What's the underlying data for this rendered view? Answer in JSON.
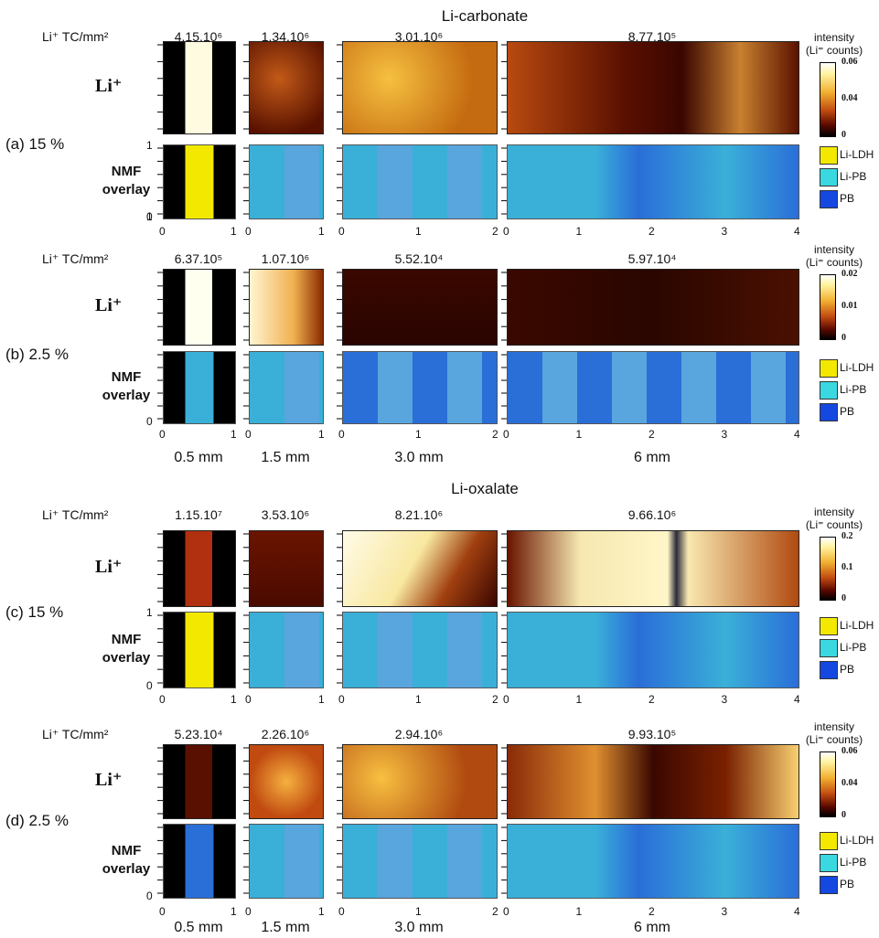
{
  "sections": [
    {
      "title": "Li-carbonate",
      "rows": [
        {
          "label": "(a) 15 %",
          "tc_label": "Li⁺ TC/mm²",
          "tc_values": [
            "4.15.10⁶",
            "1.34.10⁶",
            "3.01.10⁶",
            "8.77.10⁵"
          ],
          "li_label": "Li⁺",
          "nmf_label": [
            "NMF",
            "overlay"
          ],
          "colorbar": {
            "title": [
              "intensity",
              "(Li⁼ counts)"
            ],
            "ticks": [
              "0.06",
              "0.04",
              "0"
            ]
          },
          "legend": [
            "Li-LDH",
            "Li-PB",
            "PB"
          ],
          "y_ticks": [
            "1",
            "1",
            "0"
          ]
        },
        {
          "label": "(b) 2.5 %",
          "tc_label": "Li⁺ TC/mm²",
          "tc_values": [
            "6.37.10⁵",
            "1.07.10⁶",
            "5.52.10⁴",
            "5.97.10⁴"
          ],
          "li_label": "Li⁺",
          "nmf_label": [
            "NMF",
            "overlay"
          ],
          "colorbar": {
            "title": [
              "intensity",
              "(Li⁼ counts)"
            ],
            "ticks": [
              "0.02",
              "0.01",
              "0"
            ]
          },
          "legend": [
            "Li-LDH",
            "Li-PB",
            "PB"
          ],
          "y_ticks": [
            "0"
          ]
        }
      ],
      "sizes": [
        "0.5 mm",
        "1.5 mm",
        "3.0 mm",
        "6 mm"
      ]
    },
    {
      "title": "Li-oxalate",
      "rows": [
        {
          "label": "(c) 15 %",
          "tc_label": "Li⁺ TC/mm²",
          "tc_values": [
            "1.15.10⁷",
            "3.53.10⁶",
            "8.21.10⁶",
            "9.66.10⁶"
          ],
          "li_label": "Li⁺",
          "nmf_label": [
            "NMF",
            "overlay"
          ],
          "colorbar": {
            "title": [
              "intensity",
              "(Li⁼ counts)"
            ],
            "ticks": [
              "0.2",
              "0.1",
              "0"
            ]
          },
          "legend": [
            "Li-LDH",
            "Li-PB",
            "PB"
          ],
          "y_ticks": [
            "1",
            "0"
          ]
        },
        {
          "label": "(d) 2.5 %",
          "tc_label": "Li⁺ TC/mm²",
          "tc_values": [
            "5.23.10⁴",
            "2.26.10⁶",
            "2.94.10⁶",
            "9.93.10⁵"
          ],
          "li_label": "Li⁺",
          "nmf_label": [
            "NMF",
            "overlay"
          ],
          "colorbar": {
            "title": [
              "intensity",
              "(Li⁼ counts)"
            ],
            "ticks": [
              "0.06",
              "0.04",
              "0"
            ]
          },
          "legend": [
            "Li-LDH",
            "Li-PB",
            "PB"
          ],
          "y_ticks": [
            "0"
          ]
        }
      ],
      "sizes": [
        "0.5 mm",
        "1.5 mm",
        "3.0 mm",
        "6 mm"
      ]
    }
  ],
  "x_ticks": {
    "p1": [
      "0",
      "1"
    ],
    "p2": [
      "0",
      "1"
    ],
    "p3": [
      "0",
      "1",
      "2"
    ],
    "p4": [
      "0",
      "1",
      "2",
      "3",
      "4"
    ]
  },
  "colors": {
    "li_ldh": "#f2e800",
    "li_pb": "#3ad8e0",
    "pb": "#1448e0",
    "nmf_cyan": "#3ab0d8",
    "nmf_blue": "#2a6ed8"
  }
}
